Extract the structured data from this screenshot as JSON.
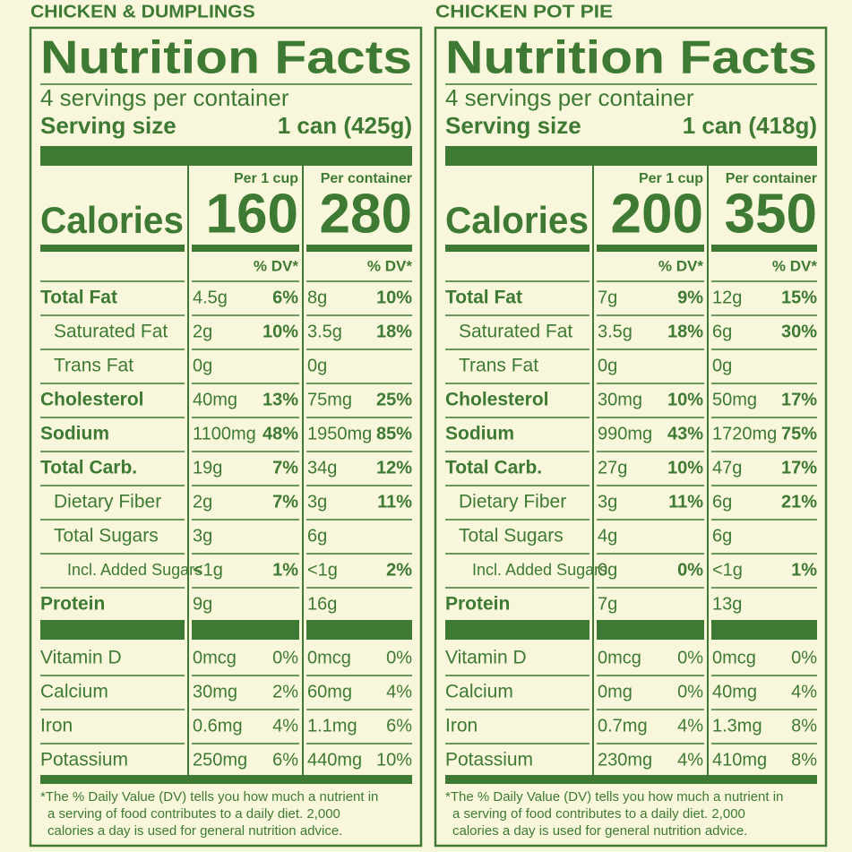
{
  "labels": [
    {
      "product": "CHICKEN & DUMPLINGS",
      "title": "Nutrition Facts",
      "servings": "4 servings per container",
      "serving_size_label": "Serving size",
      "serving_size": "1 can (425g)",
      "per_cup": "Per 1 cup",
      "per_container": "Per container",
      "calories_label": "Calories",
      "calories_cup": "160",
      "calories_container": "280",
      "dv_header": "% DV*",
      "nutrients": [
        {
          "name": "Total Fat",
          "cup": "4.5g",
          "cup_dv": "6%",
          "container": "8g",
          "container_dv": "10%",
          "style": "bold"
        },
        {
          "name": "Saturated Fat",
          "cup": "2g",
          "cup_dv": "10%",
          "container": "3.5g",
          "container_dv": "18%",
          "style": "indent"
        },
        {
          "name": "Trans Fat",
          "cup": "0g",
          "cup_dv": null,
          "container": "0g",
          "container_dv": null,
          "style": "indent"
        },
        {
          "name": "Cholesterol",
          "cup": "40mg",
          "cup_dv": "13%",
          "container": "75mg",
          "container_dv": "25%",
          "style": "bold"
        },
        {
          "name": "Sodium",
          "cup": "1100mg",
          "cup_dv": "48%",
          "container": "1950mg",
          "container_dv": "85%",
          "style": "bold"
        },
        {
          "name": "Total Carb.",
          "cup": "19g",
          "cup_dv": "7%",
          "container": "34g",
          "container_dv": "12%",
          "style": "bold"
        },
        {
          "name": "Dietary Fiber",
          "cup": "2g",
          "cup_dv": "7%",
          "container": "3g",
          "container_dv": "11%",
          "style": "indent"
        },
        {
          "name": "Total Sugars",
          "cup": "3g",
          "cup_dv": null,
          "container": "6g",
          "container_dv": null,
          "style": "indent"
        },
        {
          "name": "Incl. Added Sugars",
          "cup": "<1g",
          "cup_dv": "1%",
          "container": "<1g",
          "container_dv": "2%",
          "style": "indent2"
        },
        {
          "name": "Protein",
          "cup": "9g",
          "cup_dv": null,
          "container": "16g",
          "container_dv": null,
          "style": "bold"
        }
      ],
      "vitamins": [
        {
          "name": "Vitamin D",
          "cup": "0mcg",
          "cup_dv": "0%",
          "container": "0mcg",
          "container_dv": "0%"
        },
        {
          "name": "Calcium",
          "cup": "30mg",
          "cup_dv": "2%",
          "container": "60mg",
          "container_dv": "4%"
        },
        {
          "name": "Iron",
          "cup": "0.6mg",
          "cup_dv": "4%",
          "container": "1.1mg",
          "container_dv": "6%"
        },
        {
          "name": "Potassium",
          "cup": "250mg",
          "cup_dv": "6%",
          "container": "440mg",
          "container_dv": "10%"
        }
      ],
      "footnote": [
        "*The % Daily Value (DV) tells you how much a nutrient in",
        "a serving of food contributes to a daily diet. 2,000",
        "calories a day is used for general nutrition advice."
      ]
    },
    {
      "product": "CHICKEN POT PIE",
      "title": "Nutrition Facts",
      "servings": "4 servings per container",
      "serving_size_label": "Serving size",
      "serving_size": "1 can (418g)",
      "per_cup": "Per 1 cup",
      "per_container": "Per container",
      "calories_label": "Calories",
      "calories_cup": "200",
      "calories_container": "350",
      "dv_header": "% DV*",
      "nutrients": [
        {
          "name": "Total Fat",
          "cup": "7g",
          "cup_dv": "9%",
          "container": "12g",
          "container_dv": "15%",
          "style": "bold"
        },
        {
          "name": "Saturated Fat",
          "cup": "3.5g",
          "cup_dv": "18%",
          "container": "6g",
          "container_dv": "30%",
          "style": "indent"
        },
        {
          "name": "Trans Fat",
          "cup": "0g",
          "cup_dv": null,
          "container": "0g",
          "container_dv": null,
          "style": "indent"
        },
        {
          "name": "Cholesterol",
          "cup": "30mg",
          "cup_dv": "10%",
          "container": "50mg",
          "container_dv": "17%",
          "style": "bold"
        },
        {
          "name": "Sodium",
          "cup": "990mg",
          "cup_dv": "43%",
          "container": "1720mg",
          "container_dv": "75%",
          "style": "bold"
        },
        {
          "name": "Total Carb.",
          "cup": "27g",
          "cup_dv": "10%",
          "container": "47g",
          "container_dv": "17%",
          "style": "bold"
        },
        {
          "name": "Dietary Fiber",
          "cup": "3g",
          "cup_dv": "11%",
          "container": "6g",
          "container_dv": "21%",
          "style": "indent"
        },
        {
          "name": "Total Sugars",
          "cup": "4g",
          "cup_dv": null,
          "container": "6g",
          "container_dv": null,
          "style": "indent"
        },
        {
          "name": "Incl. Added Sugars",
          "cup": "0g",
          "cup_dv": "0%",
          "container": "<1g",
          "container_dv": "1%",
          "style": "indent2"
        },
        {
          "name": "Protein",
          "cup": "7g",
          "cup_dv": null,
          "container": "13g",
          "container_dv": null,
          "style": "bold"
        }
      ],
      "vitamins": [
        {
          "name": "Vitamin D",
          "cup": "0mcg",
          "cup_dv": "0%",
          "container": "0mcg",
          "container_dv": "0%"
        },
        {
          "name": "Calcium",
          "cup": "0mg",
          "cup_dv": "0%",
          "container": "40mg",
          "container_dv": "4%"
        },
        {
          "name": "Iron",
          "cup": "0.7mg",
          "cup_dv": "4%",
          "container": "1.3mg",
          "container_dv": "8%"
        },
        {
          "name": "Potassium",
          "cup": "230mg",
          "cup_dv": "4%",
          "container": "410mg",
          "container_dv": "8%"
        }
      ],
      "footnote": [
        "*The % Daily Value (DV) tells you how much a nutrient in",
        "a serving of food contributes to a daily diet. 2,000",
        "calories a day is used for general nutrition advice."
      ]
    }
  ]
}
